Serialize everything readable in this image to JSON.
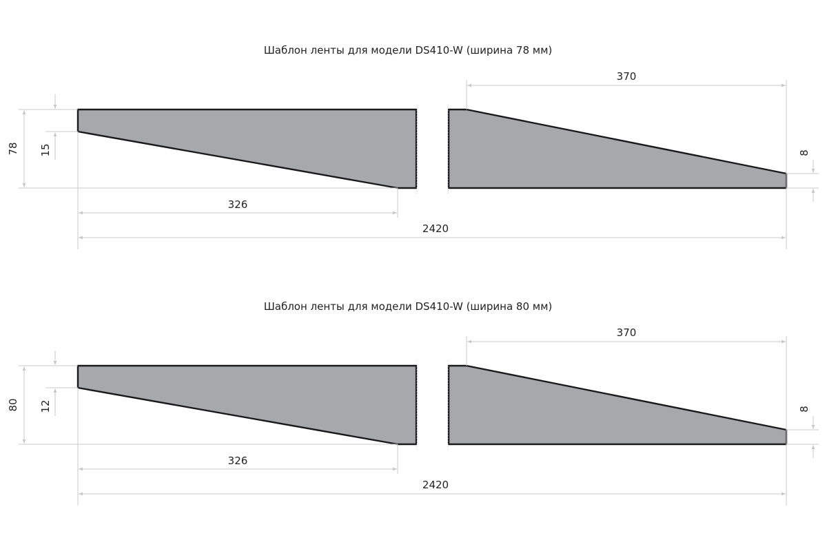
{
  "panels": [
    {
      "title": "Шаблон ленты для модели DS410-W (ширина 78 мм)",
      "dimensions": {
        "width": "78",
        "left_cut": "15",
        "left_taper_length": "326",
        "right_taper_length": "370",
        "right_end": "8",
        "total_length": "2420"
      }
    },
    {
      "title": "Шаблон ленты для модели DS410-W (ширина 80 мм)",
      "dimensions": {
        "width": "80",
        "left_cut": "12",
        "left_taper_length": "326",
        "right_taper_length": "370",
        "right_end": "8",
        "total_length": "2420"
      }
    }
  ],
  "colors": {
    "band_fill": "#a7a8ab",
    "band_outline": "#1a1a1a",
    "dimension_lines": "#c8c8c8"
  }
}
